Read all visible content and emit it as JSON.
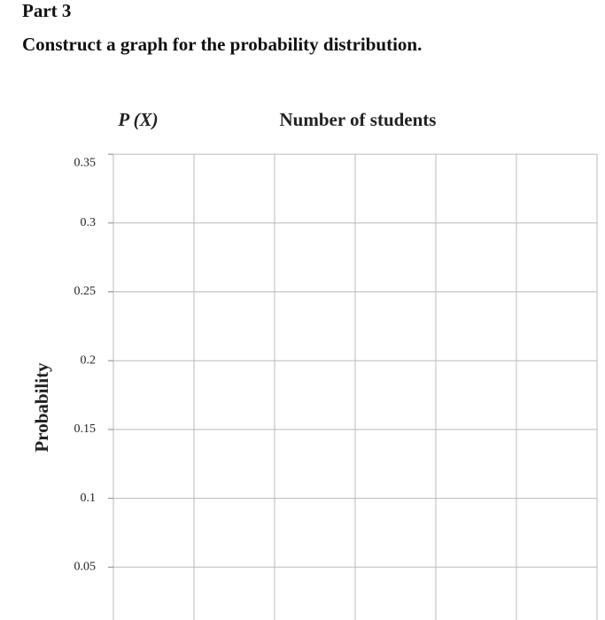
{
  "header": {
    "part": "Part 3",
    "instruction": "Construct a graph for the probability distribution."
  },
  "graph": {
    "y_axis_label": "Probability",
    "y_symbol": "P (X)",
    "x_title": "Number of students",
    "yticks": [
      0.05,
      0.1,
      0.15,
      0.2,
      0.25,
      0.3,
      0.35
    ]
  }
}
